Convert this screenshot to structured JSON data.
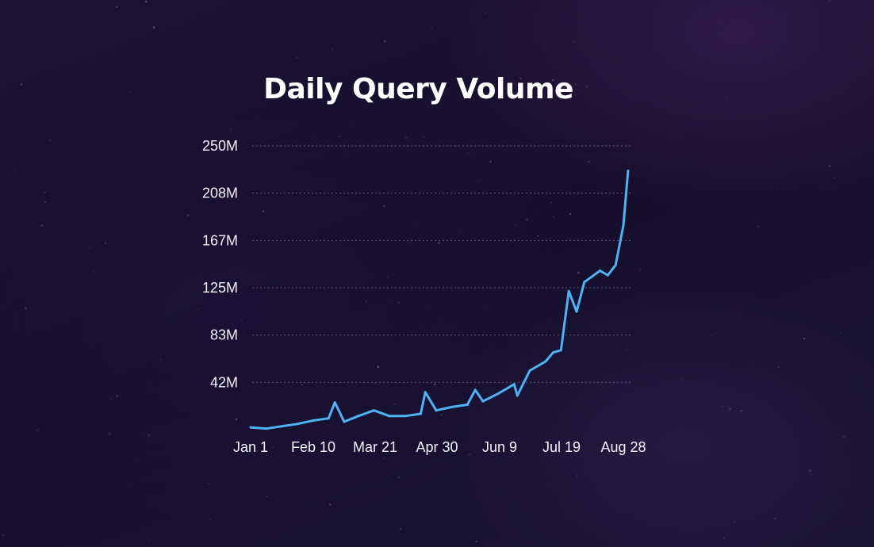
{
  "chart_data": {
    "type": "line",
    "title": "Daily Query Volume",
    "xlabel": "",
    "ylabel": "",
    "x_ticks": [
      "Jan 1",
      "Feb 10",
      "Mar 21",
      "Apr 30",
      "Jun 9",
      "Jul 19",
      "Aug 28"
    ],
    "y_ticks": [
      "250M",
      "208M",
      "167M",
      "125M",
      "83M",
      "42M"
    ],
    "ylim": [
      0,
      250
    ],
    "y_unit": "M",
    "grid": true,
    "line_color": "#4db3f5",
    "series": [
      {
        "x": [
          "Jan 1",
          "Jan 11",
          "Jan 21",
          "Jan 31",
          "Feb 10",
          "Feb 20",
          "Feb 24",
          "Mar 2",
          "Mar 11",
          "Mar 21",
          "Mar 31",
          "Apr 10",
          "Apr 20",
          "Apr 23",
          "Apr 30",
          "May 10",
          "May 20",
          "May 25",
          "May 30",
          "Jun 9",
          "Jun 19",
          "Jun 21",
          "Jun 29",
          "Jul 9",
          "Jul 14",
          "Jul 19",
          "Jul 24",
          "Jul 29",
          "Aug 3",
          "Aug 8",
          "Aug 13",
          "Aug 18",
          "Aug 23",
          "Aug 28",
          "Aug 31"
        ],
        "values": [
          2,
          1,
          3,
          5,
          8,
          10,
          24,
          7,
          12,
          17,
          12,
          12,
          14,
          33,
          17,
          20,
          22,
          35,
          25,
          32,
          40,
          30,
          52,
          60,
          68,
          70,
          122,
          104,
          130,
          135,
          140,
          136,
          145,
          180,
          228
        ]
      }
    ]
  }
}
